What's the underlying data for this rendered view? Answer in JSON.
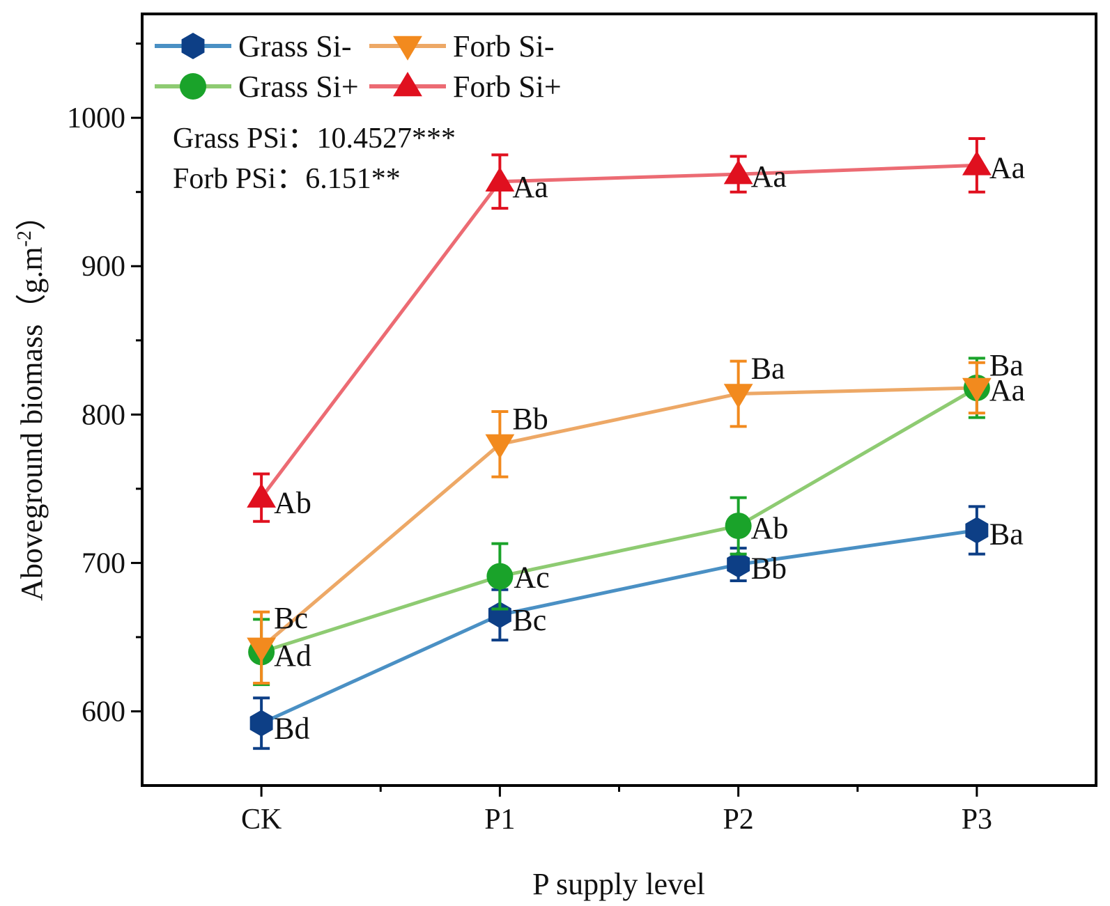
{
  "chart_data": {
    "type": "line",
    "xlabel": "P supply level",
    "ylabel": "Aboveground biomass（g.m-2）",
    "ylabel_main": "Aboveground biomass（g.m",
    "ylabel_sup": "-2",
    "ylabel_close": "）",
    "categories": [
      "CK",
      "P1",
      "P2",
      "P3"
    ],
    "ylim": [
      550,
      1070
    ],
    "yticks": [
      600,
      700,
      800,
      900,
      1000
    ],
    "grid": false,
    "legend_position": "top-left",
    "annotations": [
      "Grass PSi：10.4527***",
      "Forb PSi：6.151**"
    ],
    "series": [
      {
        "name": "Grass Si-",
        "marker": "hexagon",
        "line_color": "#4a90c4",
        "marker_color": "#0d3f86",
        "values": [
          592,
          665,
          699,
          722
        ],
        "errors": [
          17,
          17,
          11,
          16
        ],
        "labels": [
          "Bd",
          "Bc",
          "Bb",
          "Ba"
        ]
      },
      {
        "name": "Grass Si+",
        "marker": "circle",
        "line_color": "#8ecb72",
        "marker_color": "#1aa32a",
        "values": [
          640,
          691,
          725,
          818
        ],
        "errors": [
          22,
          22,
          19,
          20
        ],
        "labels": [
          "Ad",
          "Ac",
          "Ab",
          "Aa"
        ]
      },
      {
        "name": "Forb Si-",
        "marker": "triangle-down",
        "line_color": "#eda866",
        "marker_color": "#f28a1e",
        "values": [
          643,
          780,
          814,
          818
        ],
        "errors": [
          24,
          22,
          22,
          17
        ],
        "labels": [
          "Bc",
          "Bb",
          "Ba",
          "Ba"
        ]
      },
      {
        "name": "Forb Si+",
        "marker": "triangle-up",
        "line_color": "#ec6b73",
        "marker_color": "#e0101f",
        "values": [
          744,
          957,
          962,
          968
        ],
        "errors": [
          16,
          18,
          12,
          18
        ],
        "labels": [
          "Ab",
          "Aa",
          "Aa",
          "Aa"
        ]
      }
    ]
  }
}
